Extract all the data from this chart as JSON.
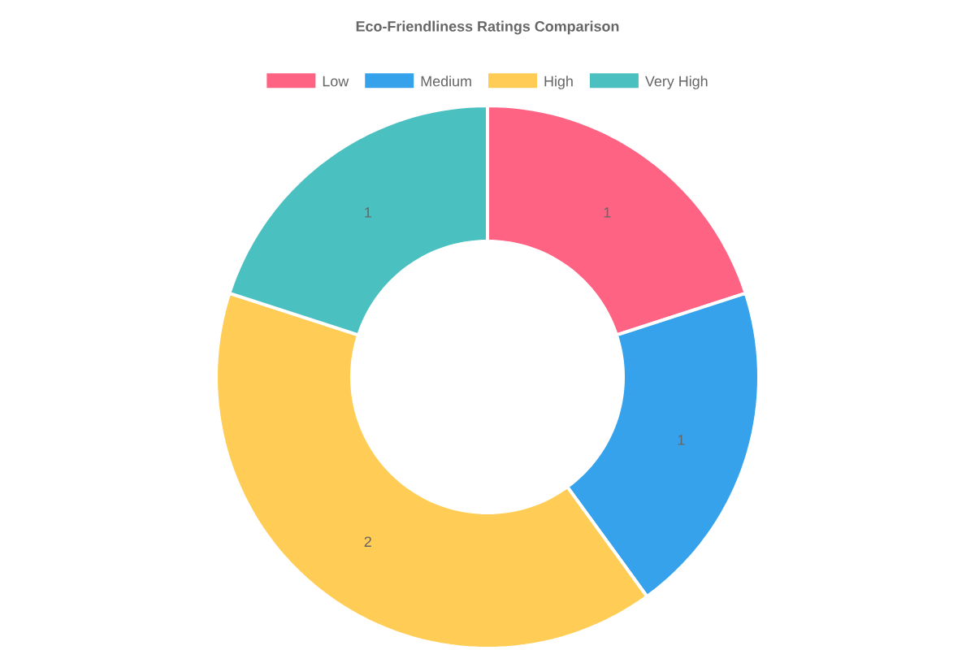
{
  "chart_data": {
    "type": "donut",
    "title": "Eco-Friendliness Ratings Comparison",
    "categories": [
      "Low",
      "Medium",
      "High",
      "Very High"
    ],
    "values": [
      1,
      1,
      2,
      1
    ],
    "colors": [
      "#ff6384",
      "#36a2eb",
      "#ffcd56",
      "#4bc0c0"
    ],
    "data_labels": true,
    "legend": "top"
  }
}
